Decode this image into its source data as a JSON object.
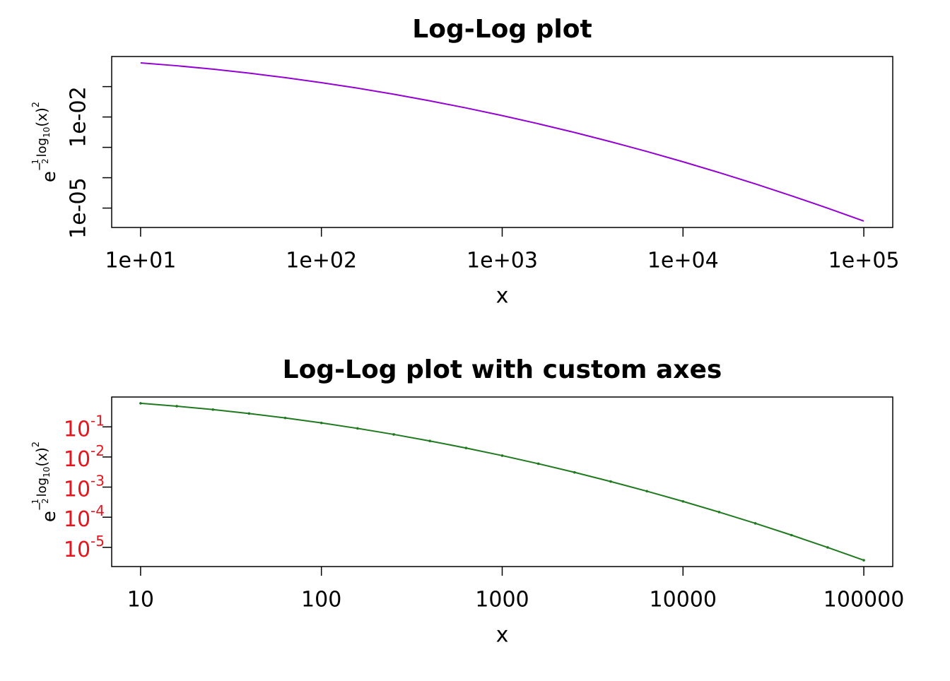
{
  "chart_data": [
    {
      "type": "line",
      "title": "Log-Log plot",
      "xlabel": "x",
      "ylabel_parts": [
        "e",
        "−",
        "1",
        "2",
        "log",
        "10",
        "(x)",
        "2"
      ],
      "log_x": true,
      "log_y": true,
      "x": [
        10,
        15.85,
        25.12,
        39.81,
        63.1,
        100,
        158.5,
        251.2,
        398.1,
        631,
        1000,
        1585,
        2512,
        3981,
        6310,
        10000,
        15849,
        25119,
        39811,
        63096,
        100000
      ],
      "series": [
        {
          "color": "#9400d3",
          "markers": false,
          "values": [
            0.6065,
            0.4868,
            0.3753,
            0.278,
            0.1979,
            0.1353,
            0.08892,
            0.05613,
            0.03405,
            0.01984,
            0.01111,
            0.005976,
            0.003089,
            0.001534,
            0.0007318,
            0.0003355,
            0.0001478,
            6.255e-05,
            2.543e-05,
            9.932e-06,
            3.727e-06
          ]
        }
      ],
      "xlim": [
        6.92,
        144544
      ],
      "ylim": [
        2.3e-06,
        0.98
      ],
      "xticks": [
        {
          "value": 10,
          "label": "1e+01"
        },
        {
          "value": 100,
          "label": "1e+02"
        },
        {
          "value": 1000,
          "label": "1e+03"
        },
        {
          "value": 10000,
          "label": "1e+04"
        },
        {
          "value": 100000,
          "label": "1e+05"
        }
      ],
      "yticks": [
        {
          "value": 0.01,
          "label": "1e-02"
        },
        {
          "value": 1e-05,
          "label": "1e-05"
        }
      ],
      "yticks_unlabeled": [
        0.1,
        0.001,
        0.0001
      ],
      "ytick_label_color": "#000000"
    },
    {
      "type": "line",
      "title": "Log-Log plot with custom axes",
      "xlabel": "x",
      "ylabel_parts": [
        "e",
        "−",
        "1",
        "2",
        "log",
        "10",
        "(x)",
        "2"
      ],
      "log_x": true,
      "log_y": true,
      "x": [
        10,
        15.85,
        25.12,
        39.81,
        63.1,
        100,
        158.5,
        251.2,
        398.1,
        631,
        1000,
        1585,
        2512,
        3981,
        6310,
        10000,
        15849,
        25119,
        39811,
        63096,
        100000
      ],
      "series": [
        {
          "color": "#1f7a1f",
          "markers": true,
          "values": [
            0.6065,
            0.4868,
            0.3753,
            0.278,
            0.1979,
            0.1353,
            0.08892,
            0.05613,
            0.03405,
            0.01984,
            0.01111,
            0.005976,
            0.003089,
            0.001534,
            0.0007318,
            0.0003355,
            0.0001478,
            6.255e-05,
            2.543e-05,
            9.932e-06,
            3.727e-06
          ]
        }
      ],
      "xlim": [
        6.92,
        144544
      ],
      "ylim": [
        2.3e-06,
        0.98
      ],
      "xticks": [
        10,
        100,
        1000,
        10000,
        100000
      ],
      "yticks": [
        {
          "value": 0.1,
          "label": "10",
          "exponent": "-1"
        },
        {
          "value": 0.01,
          "label": "10",
          "exponent": "-2"
        },
        {
          "value": 0.001,
          "label": "10",
          "exponent": "-3"
        },
        {
          "value": 0.0001,
          "label": "10",
          "exponent": "-4"
        },
        {
          "value": 1e-05,
          "label": "10",
          "exponent": "-5"
        }
      ],
      "yticks_unlabeled": [],
      "ytick_label_color": "#e8141c"
    }
  ]
}
